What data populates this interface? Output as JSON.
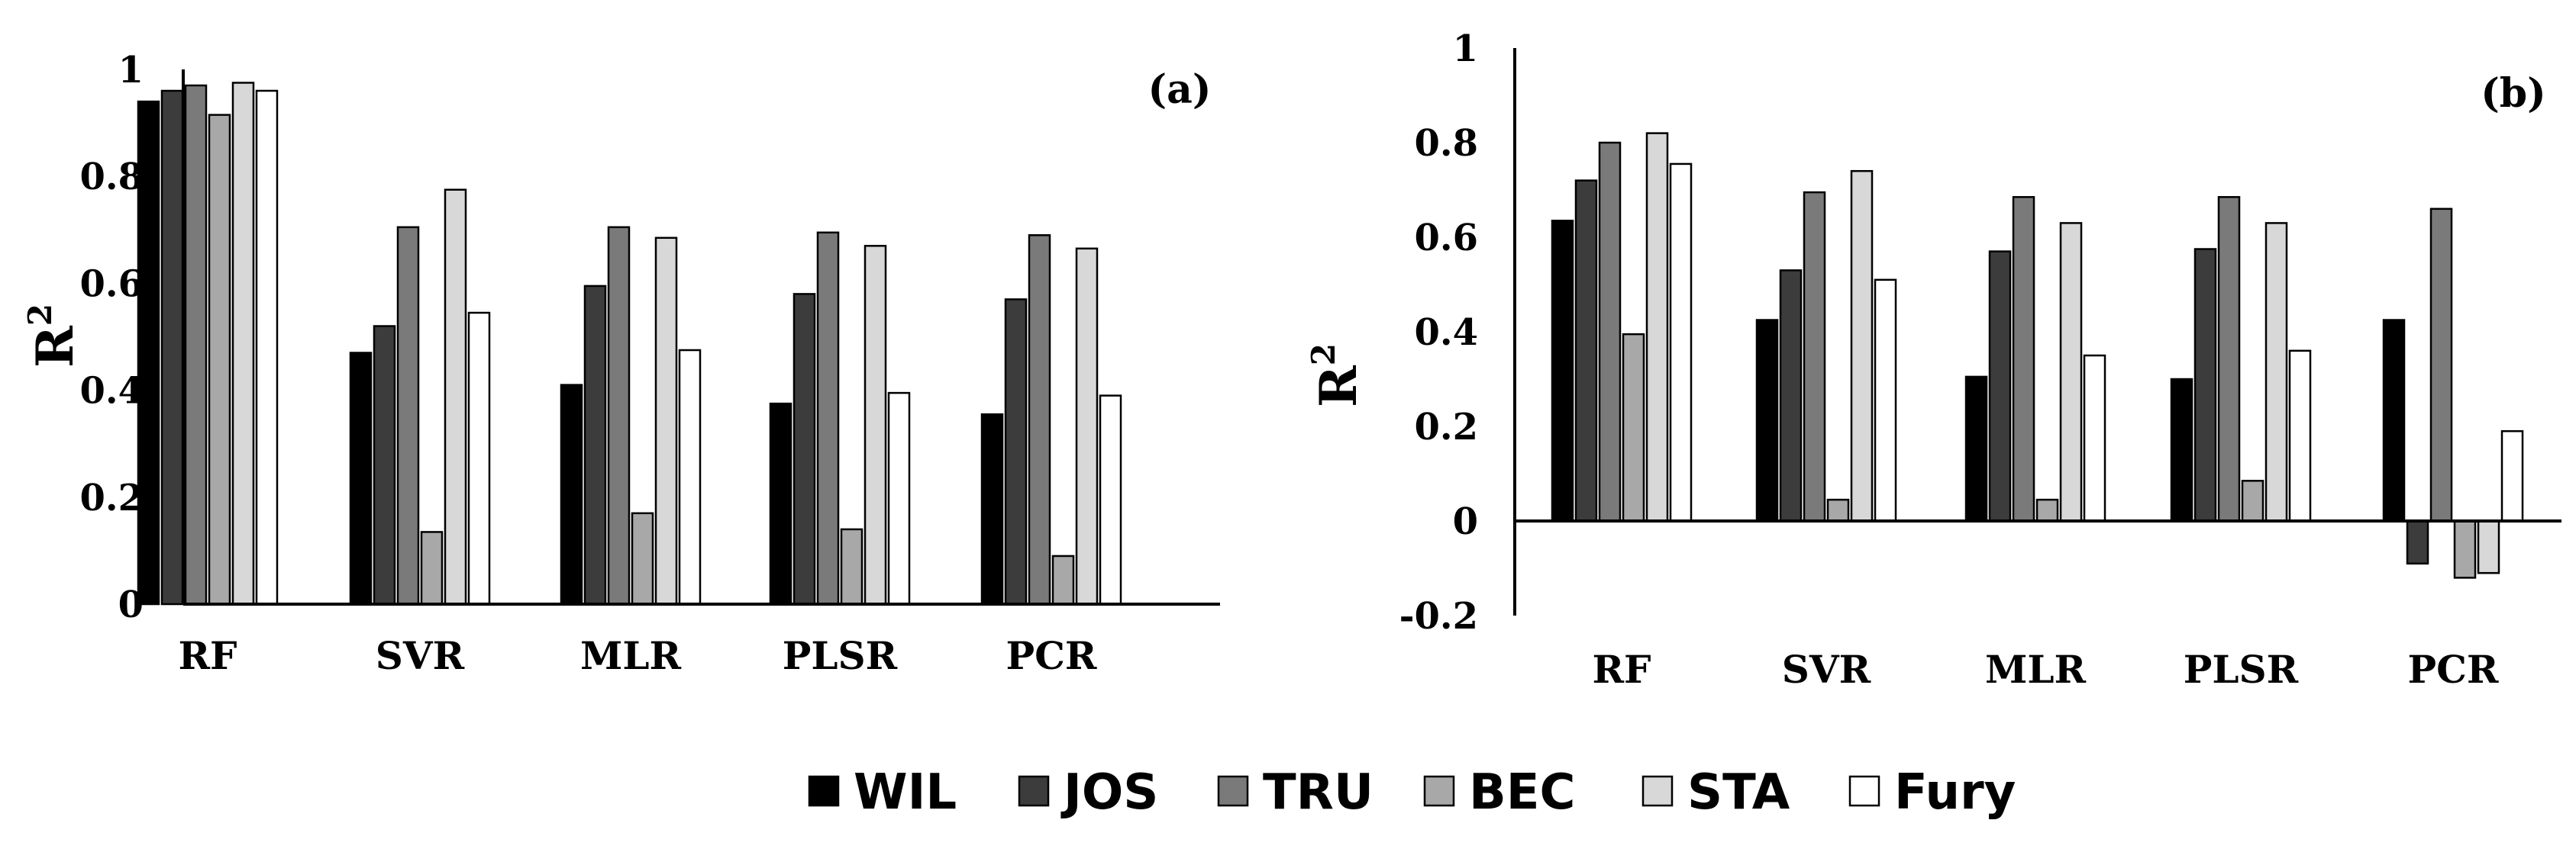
{
  "figure": {
    "legend": [
      {
        "name": "WIL",
        "color": "#000000"
      },
      {
        "name": "JOS",
        "color": "#3c3c3c"
      },
      {
        "name": "TRU",
        "color": "#7a7a7a"
      },
      {
        "name": "BEC",
        "color": "#a8a8a8"
      },
      {
        "name": "STA",
        "color": "#d8d8d8"
      },
      {
        "name": "Fury",
        "color": "#ffffff"
      }
    ]
  },
  "chart_data": [
    {
      "id": "a",
      "type": "bar",
      "panel_label": "(a)",
      "title": "",
      "xlabel": "",
      "ylabel": "R",
      "ylabel_sup": "2",
      "ylim": [
        0,
        1
      ],
      "yticks": [
        0,
        0.2,
        0.4,
        0.6,
        0.8,
        1
      ],
      "ytick_labels": [
        "0",
        "0.2",
        "0.4",
        "0.6",
        "0.8",
        "1"
      ],
      "grid": false,
      "categories": [
        "RF",
        "SVR",
        "MLR",
        "PLSR",
        "PCR"
      ],
      "series": [
        {
          "name": "WIL",
          "values": [
            0.94,
            0.47,
            0.41,
            0.375,
            0.355
          ]
        },
        {
          "name": "JOS",
          "values": [
            0.96,
            0.52,
            0.595,
            0.58,
            0.57
          ]
        },
        {
          "name": "TRU",
          "values": [
            0.97,
            0.705,
            0.705,
            0.695,
            0.69
          ]
        },
        {
          "name": "BEC",
          "values": [
            0.915,
            0.135,
            0.17,
            0.14,
            0.09
          ]
        },
        {
          "name": "STA",
          "values": [
            0.975,
            0.775,
            0.685,
            0.67,
            0.665
          ]
        },
        {
          "name": "Fury",
          "values": [
            0.96,
            0.545,
            0.475,
            0.395,
            0.39
          ]
        }
      ]
    },
    {
      "id": "b",
      "type": "bar",
      "panel_label": "(b)",
      "title": "",
      "xlabel": "",
      "ylabel": "R",
      "ylabel_sup": "2",
      "ylim": [
        -0.2,
        1
      ],
      "yticks": [
        -0.2,
        0,
        0.2,
        0.4,
        0.6,
        0.8,
        1
      ],
      "ytick_labels": [
        "-0.2",
        "0",
        "0.2",
        "0.4",
        "0.6",
        "0.8",
        "1"
      ],
      "grid": false,
      "categories": [
        "RF",
        "SVR",
        "MLR",
        "PLSR",
        "PCR"
      ],
      "series": [
        {
          "name": "WIL",
          "values": [
            0.635,
            0.425,
            0.305,
            0.3,
            0.425
          ]
        },
        {
          "name": "JOS",
          "values": [
            0.72,
            0.53,
            0.57,
            0.575,
            -0.09
          ]
        },
        {
          "name": "TRU",
          "values": [
            0.8,
            0.695,
            0.685,
            0.685,
            0.66
          ]
        },
        {
          "name": "BEC",
          "values": [
            0.395,
            0.045,
            0.045,
            0.085,
            -0.12
          ]
        },
        {
          "name": "STA",
          "values": [
            0.82,
            0.74,
            0.63,
            0.63,
            -0.11
          ]
        },
        {
          "name": "Fury",
          "values": [
            0.755,
            0.51,
            0.35,
            0.36,
            0.19
          ]
        }
      ]
    }
  ]
}
